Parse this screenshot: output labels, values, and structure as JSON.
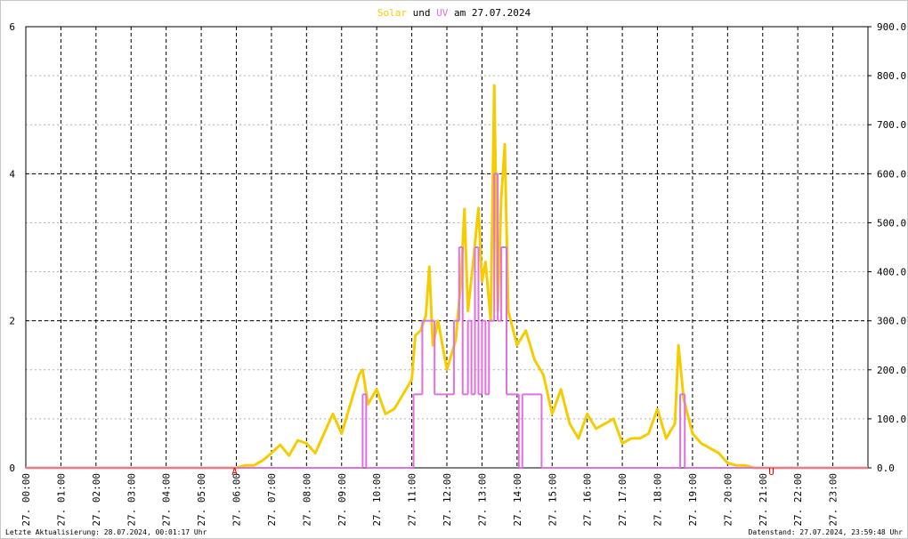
{
  "chart_data": {
    "type": "line",
    "title_connector": "und",
    "title_suffix": "am 27.07.2024",
    "footer_left": "Letzte Aktualisierung: 28.07.2024, 00:01:17 Uhr",
    "footer_right": "Datenstand: 27.07.2024, 23:59:48 Uhr",
    "xlim": [
      0,
      24
    ],
    "xticks": [
      {
        "value": 0,
        "label": "27. 00:00"
      },
      {
        "value": 1,
        "label": "27. 01:00"
      },
      {
        "value": 2,
        "label": "27. 02:00"
      },
      {
        "value": 3,
        "label": "27. 03:00"
      },
      {
        "value": 4,
        "label": "27. 04:00"
      },
      {
        "value": 5,
        "label": "27. 05:00"
      },
      {
        "value": 6,
        "label": "27. 06:00"
      },
      {
        "value": 7,
        "label": "27. 07:00"
      },
      {
        "value": 8,
        "label": "27. 08:00"
      },
      {
        "value": 9,
        "label": "27. 09:00"
      },
      {
        "value": 10,
        "label": "27. 10:00"
      },
      {
        "value": 11,
        "label": "27. 11:00"
      },
      {
        "value": 12,
        "label": "27. 12:00"
      },
      {
        "value": 13,
        "label": "27. 13:00"
      },
      {
        "value": 14,
        "label": "27. 14:00"
      },
      {
        "value": 15,
        "label": "27. 15:00"
      },
      {
        "value": 16,
        "label": "27. 16:00"
      },
      {
        "value": 17,
        "label": "27. 17:00"
      },
      {
        "value": 18,
        "label": "27. 18:00"
      },
      {
        "value": 19,
        "label": "27. 19:00"
      },
      {
        "value": 20,
        "label": "27. 20:00"
      },
      {
        "value": 21,
        "label": "27. 21:00"
      },
      {
        "value": 22,
        "label": "27. 22:00"
      },
      {
        "value": 23,
        "label": "27. 23:00"
      }
    ],
    "ylim": [
      0,
      6
    ],
    "yticks": [
      0,
      2,
      4,
      6
    ],
    "y2lim": [
      0,
      900
    ],
    "y2ticks": [
      {
        "value": 0,
        "label": "0.0"
      },
      {
        "value": 100,
        "label": "100.0"
      },
      {
        "value": 200,
        "label": "200.0"
      },
      {
        "value": 300,
        "label": "300.0"
      },
      {
        "value": 400,
        "label": "400.0"
      },
      {
        "value": 500,
        "label": "500.0"
      },
      {
        "value": 600,
        "label": "600.0"
      },
      {
        "value": 700,
        "label": "700.0"
      },
      {
        "value": 800,
        "label": "800.0"
      },
      {
        "value": 900,
        "label": "900.0"
      }
    ],
    "grid": true,
    "annotations": [
      {
        "text": "A",
        "x": 5.95,
        "color": "#e00000"
      },
      {
        "text": "U",
        "x": 21.25,
        "color": "#e00000"
      }
    ],
    "series": [
      {
        "name": "Solar",
        "color": "#f5cc00",
        "axis": "y2",
        "x": [
          0,
          6,
          6.25,
          6.5,
          6.75,
          7,
          7.25,
          7.5,
          7.75,
          8,
          8.25,
          8.5,
          8.75,
          9,
          9.25,
          9.5,
          9.6,
          9.75,
          10,
          10.25,
          10.5,
          10.75,
          11,
          11.1,
          11.25,
          11.4,
          11.5,
          11.6,
          11.75,
          12,
          12.25,
          12.4,
          12.5,
          12.6,
          12.75,
          12.9,
          13,
          13.1,
          13.25,
          13.35,
          13.45,
          13.55,
          13.65,
          13.75,
          14,
          14.25,
          14.5,
          14.75,
          15,
          15.25,
          15.5,
          15.75,
          16,
          16.25,
          16.5,
          16.75,
          17,
          17.25,
          17.5,
          17.75,
          18,
          18.25,
          18.5,
          18.6,
          18.75,
          19,
          19.25,
          19.5,
          19.75,
          20,
          20.25,
          20.5,
          20.75,
          24
        ],
        "values": [
          0,
          0,
          5,
          5,
          15,
          30,
          47,
          25,
          56,
          50,
          30,
          70,
          110,
          70,
          130,
          190,
          200,
          130,
          160,
          110,
          120,
          150,
          180,
          270,
          280,
          310,
          410,
          250,
          300,
          200,
          260,
          380,
          528,
          320,
          420,
          530,
          380,
          420,
          300,
          780,
          320,
          550,
          660,
          320,
          250,
          280,
          220,
          190,
          110,
          160,
          90,
          60,
          110,
          80,
          90,
          100,
          50,
          60,
          60,
          70,
          120,
          60,
          90,
          250,
          140,
          70,
          50,
          40,
          30,
          10,
          5,
          5,
          0,
          0
        ]
      },
      {
        "name": "UV",
        "color": "#e070e0",
        "axis": "y",
        "step": true,
        "x": [
          0,
          9.6,
          9.7,
          11.05,
          11.3,
          11.65,
          12.2,
          12.35,
          12.45,
          12.6,
          12.7,
          12.8,
          12.9,
          13,
          13.1,
          13.2,
          13.35,
          13.45,
          13.55,
          13.7,
          14.05,
          14.15,
          14.7,
          18.65,
          18.78,
          24
        ],
        "values": [
          0,
          1,
          0,
          1,
          2,
          1,
          2,
          3,
          1,
          2,
          1,
          3,
          1,
          2,
          1,
          2,
          4,
          2,
          3,
          1,
          0,
          1,
          0,
          1,
          0,
          0
        ]
      }
    ]
  }
}
